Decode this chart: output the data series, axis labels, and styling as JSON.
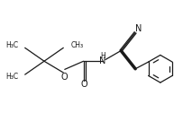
{
  "background": "#ffffff",
  "line_color": "#1a1a1a",
  "line_width": 0.9,
  "font_size": 5.5,
  "figsize": [
    2.13,
    1.45
  ],
  "dpi": 100,
  "xlim": [
    0,
    10
  ],
  "ylim": [
    0,
    6.8
  ]
}
